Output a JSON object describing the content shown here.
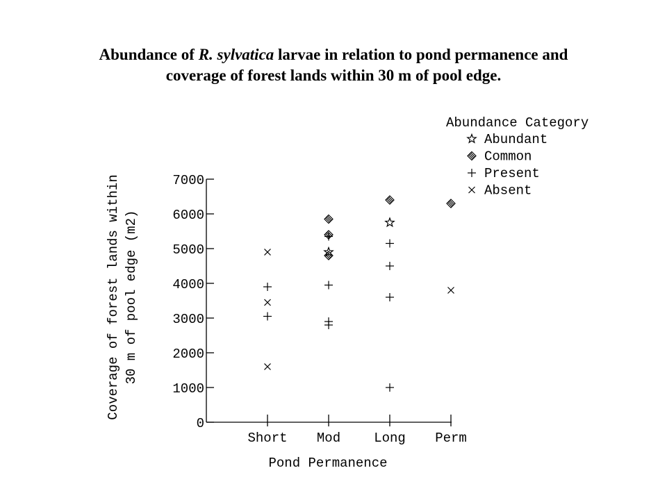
{
  "chart_data": {
    "type": "scatter",
    "title": {
      "line1_pre": "Abundance of ",
      "line1_italic": "R. sylvatica",
      "line1_post": " larvae in relation to pond permanence and",
      "line2": "coverage of forest lands within 30 m of pool edge."
    },
    "xlabel": "Pond Permanence",
    "ylabel_line1": "Coverage of forest lands within",
    "ylabel_line2": "30 m of pool edge (m2)",
    "categories": [
      "Short",
      "Mod",
      "Long",
      "Perm"
    ],
    "ylim": [
      0,
      7000
    ],
    "yticks": [
      "0",
      "1000",
      "2000",
      "3000",
      "4000",
      "5000",
      "6000",
      "7000"
    ],
    "yticks_values": [
      0,
      1000,
      2000,
      3000,
      4000,
      5000,
      6000,
      7000
    ],
    "legend": {
      "title": "Abundance Category",
      "position": "top-right"
    },
    "series": [
      {
        "name": "Abundant",
        "marker": "star",
        "points": [
          {
            "x": "Mod",
            "y": 4900
          },
          {
            "x": "Long",
            "y": 5750
          }
        ]
      },
      {
        "name": "Common",
        "marker": "diamond",
        "points": [
          {
            "x": "Mod",
            "y": 5850
          },
          {
            "x": "Mod",
            "y": 5400
          },
          {
            "x": "Mod",
            "y": 4800
          },
          {
            "x": "Long",
            "y": 6400
          },
          {
            "x": "Perm",
            "y": 6300
          }
        ]
      },
      {
        "name": "Present",
        "marker": "plus",
        "points": [
          {
            "x": "Short",
            "y": 3900
          },
          {
            "x": "Short",
            "y": 3050
          },
          {
            "x": "Mod",
            "y": 5350
          },
          {
            "x": "Mod",
            "y": 3950
          },
          {
            "x": "Mod",
            "y": 2900
          },
          {
            "x": "Mod",
            "y": 2800
          },
          {
            "x": "Long",
            "y": 5150
          },
          {
            "x": "Long",
            "y": 4500
          },
          {
            "x": "Long",
            "y": 3600
          },
          {
            "x": "Long",
            "y": 1000
          }
        ]
      },
      {
        "name": "Absent",
        "marker": "cross",
        "points": [
          {
            "x": "Short",
            "y": 4900
          },
          {
            "x": "Short",
            "y": 3450
          },
          {
            "x": "Short",
            "y": 1600
          },
          {
            "x": "Perm",
            "y": 3800
          }
        ]
      }
    ]
  }
}
